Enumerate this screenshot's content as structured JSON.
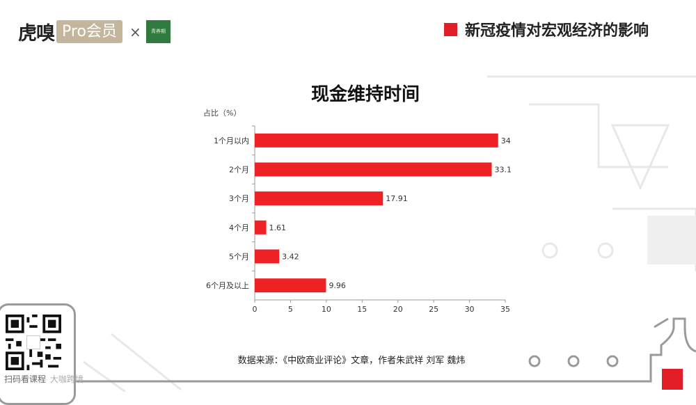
{
  "header": {
    "brand": "虎嗅",
    "pro_badge": "Pro会员",
    "times": "×",
    "partner_logo": "青养期",
    "page_title": "新冠疫情对宏观经济的影响"
  },
  "footer": {
    "source": "数据来源：《中欧商业评论》文章，作者朱武祥 刘军 魏炜",
    "qr_caption": "扫码看课程",
    "watermark": "大咖跨境"
  },
  "colors": {
    "accent": "#e21e26",
    "bar": "#ee2125",
    "decor": "#e6e6e6"
  },
  "chart_data": {
    "type": "bar",
    "orientation": "horizontal",
    "title": "现金维持时间",
    "ylabel": "占比（%）",
    "xlabel": "",
    "categories": [
      "1个月以内",
      "2个月",
      "3个月",
      "4个月",
      "5个月",
      "6个月及以上"
    ],
    "values": [
      34,
      33.1,
      17.91,
      1.61,
      3.42,
      9.96
    ],
    "value_labels": [
      "34",
      "33.1",
      "17.91",
      "1.61",
      "3.42",
      "9.96"
    ],
    "xlim": [
      0,
      35
    ],
    "xticks": [
      "0",
      "5",
      "10",
      "15",
      "20",
      "25",
      "30",
      "35"
    ],
    "grid": false,
    "legend": "none"
  }
}
